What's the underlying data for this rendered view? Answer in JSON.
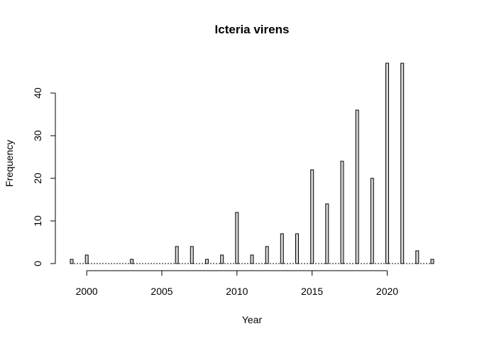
{
  "chart_data": {
    "type": "bar",
    "title": "Icteria virens",
    "xlabel": "Year",
    "ylabel": "Frequency",
    "x": [
      1999,
      2000,
      2001,
      2002,
      2003,
      2004,
      2005,
      2006,
      2007,
      2008,
      2009,
      2010,
      2011,
      2012,
      2013,
      2014,
      2015,
      2016,
      2017,
      2018,
      2019,
      2020,
      2021,
      2022,
      2023
    ],
    "values": [
      1,
      2,
      0,
      0,
      1,
      0,
      0,
      4,
      4,
      1,
      2,
      12,
      2,
      4,
      7,
      7,
      22,
      14,
      24,
      36,
      20,
      47,
      47,
      3,
      1
    ],
    "xlim": [
      1999,
      2023
    ],
    "ylim": [
      0,
      47
    ],
    "x_ticks": [
      2000,
      2005,
      2010,
      2015,
      2020
    ],
    "y_ticks": [
      0,
      10,
      20,
      30,
      40
    ],
    "grid": false,
    "legend": "none",
    "bar_color": "#d3d3d3"
  }
}
